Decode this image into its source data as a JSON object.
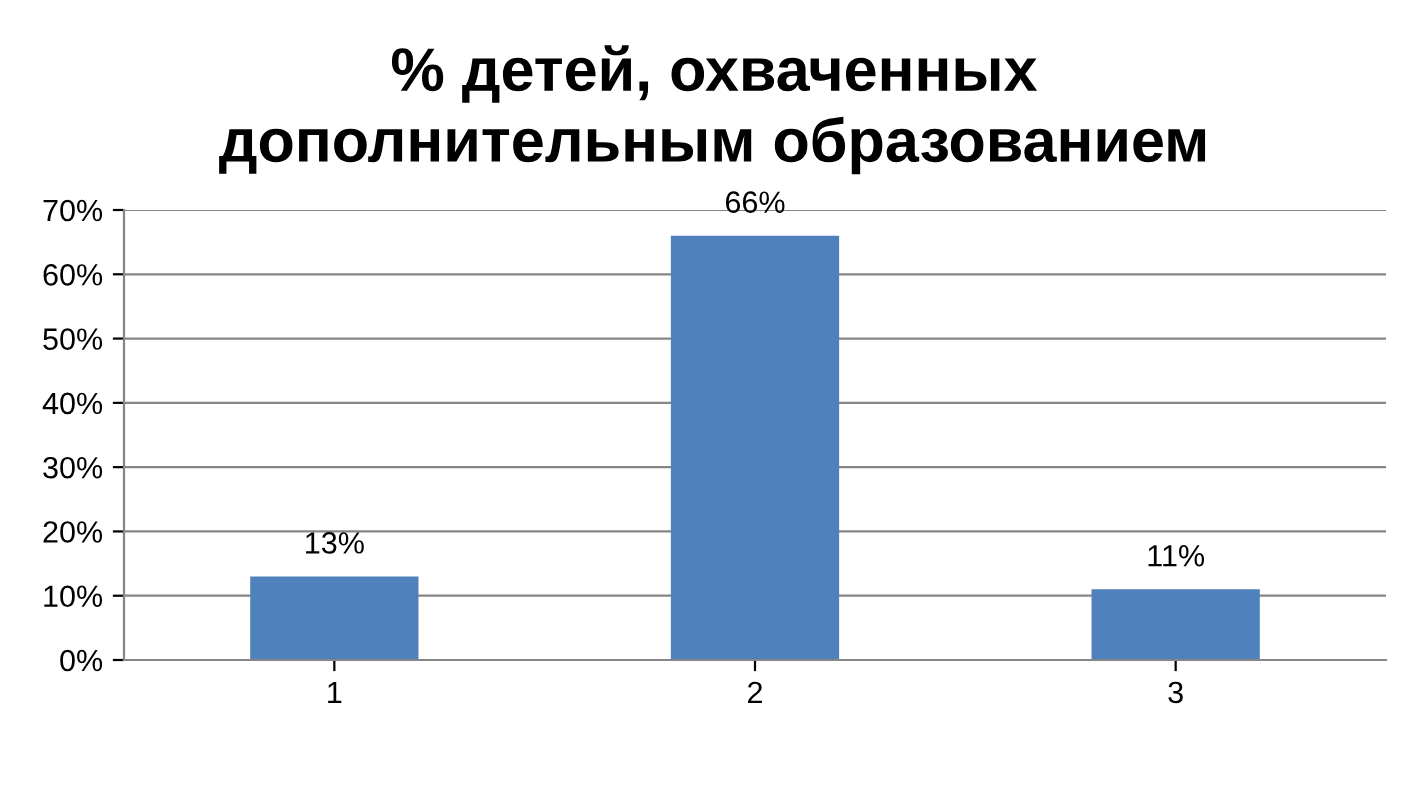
{
  "chart_data": {
    "type": "bar",
    "title": "% детей, охваченных\nдополнительным образованием",
    "categories": [
      "1",
      "2",
      "3"
    ],
    "values": [
      13,
      66,
      11
    ],
    "value_labels": [
      "13%",
      "66%",
      "11%"
    ],
    "color": "#4f81bd",
    "ylim": [
      0,
      70
    ],
    "yticks": [
      {
        "value": 0,
        "label": "0%"
      },
      {
        "value": 10,
        "label": "10%"
      },
      {
        "value": 20,
        "label": "20%"
      },
      {
        "value": 30,
        "label": "30%"
      },
      {
        "value": 40,
        "label": "40%"
      },
      {
        "value": 50,
        "label": "50%"
      },
      {
        "value": 60,
        "label": "60%"
      },
      {
        "value": 70,
        "label": "70%"
      }
    ],
    "grid": "y",
    "legend": false
  }
}
